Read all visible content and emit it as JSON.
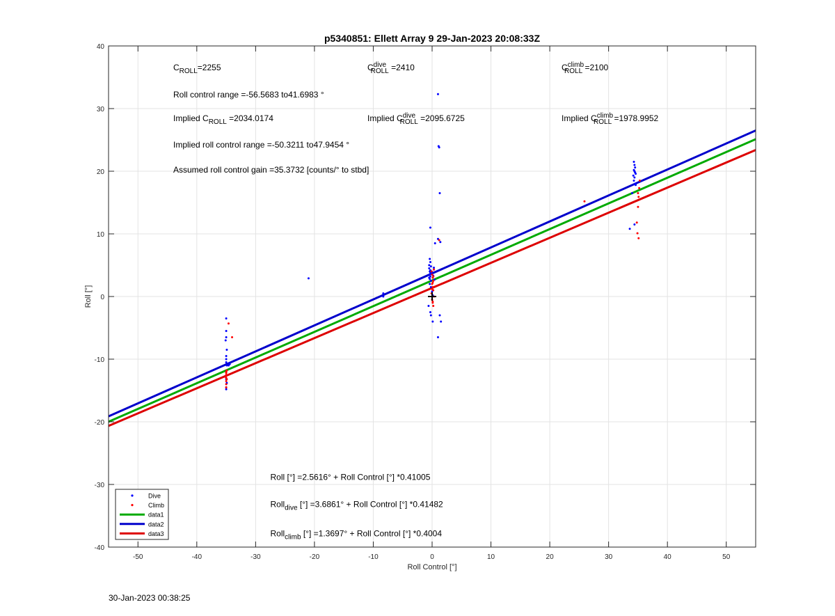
{
  "chart_data": {
    "type": "scatter",
    "title": "p5340851: Ellett Array 9 29-Jan-2023 20:08:33Z",
    "xlabel": "Roll Control [°]",
    "ylabel": "Roll [°]",
    "xlim": [
      -55,
      55
    ],
    "ylim": [
      -40,
      40
    ],
    "xticks": [
      -50,
      -40,
      -30,
      -20,
      -10,
      0,
      10,
      20,
      30,
      40,
      50
    ],
    "yticks": [
      -40,
      -30,
      -20,
      -10,
      0,
      10,
      20,
      30,
      40
    ],
    "grid": true,
    "legend_position": "bottom-left",
    "series": [
      {
        "name": "Dive",
        "kind": "points",
        "color": "#0000ff",
        "x": [
          -35.0,
          -35.0,
          -35.1,
          -34.9,
          -35.0,
          -35.0,
          -35.0,
          -34.9,
          -35.0,
          -35.1,
          -35.0,
          -34.9,
          -35.0,
          -35.0,
          -35.0,
          -34.6,
          -34.4,
          -21.0,
          -8.3,
          -8.3,
          -0.5,
          -0.4,
          -0.3,
          -0.4,
          -0.5,
          -0.3,
          -0.4,
          -0.2,
          -0.5,
          -0.3,
          -0.4,
          -0.2,
          -0.3,
          -0.1,
          -0.4,
          -0.2,
          0.0,
          0.1,
          -0.6,
          -0.3,
          -0.2,
          0.1,
          -0.3,
          0.5,
          0.3,
          0.0,
          0.2,
          0.4,
          1.0,
          1.1,
          1.2,
          1.3,
          1.0,
          1.4,
          1.5,
          1.0,
          1.3,
          34.3,
          34.4,
          34.5,
          34.3,
          34.4,
          34.5,
          34.6,
          34.2,
          34.4,
          34.3,
          34.5,
          34.6,
          34.0,
          33.6,
          34.4
        ],
        "y": [
          -3.5,
          -5.5,
          -7.0,
          -8.5,
          -9.5,
          -10.0,
          -10.5,
          -11.0,
          -12.0,
          -12.8,
          -13.2,
          -13.8,
          -14.5,
          -14.8,
          -6.5,
          -11.0,
          -10.8,
          2.9,
          0.5,
          0.0,
          4.5,
          4.0,
          3.8,
          3.5,
          3.0,
          3.2,
          2.8,
          2.5,
          5.0,
          5.5,
          6.0,
          4.8,
          4.2,
          3.6,
          2.0,
          1.5,
          0.8,
          0.2,
          -1.5,
          -2.5,
          -3.0,
          -4.0,
          11.0,
          8.5,
          4.6,
          3.9,
          3.3,
          2.7,
          32.3,
          24.0,
          23.8,
          16.5,
          9.2,
          8.7,
          -4.0,
          -6.5,
          -3.0,
          21.5,
          21.0,
          20.6,
          20.2,
          20.0,
          19.8,
          19.6,
          19.3,
          19.0,
          18.5,
          18.0,
          17.8,
          16.5,
          10.8,
          11.5
        ]
      },
      {
        "name": "Climb",
        "kind": "points",
        "color": "#ff0000",
        "x": [
          -35.0,
          -35.0,
          -35.0,
          -35.0,
          -35.0,
          -35.0,
          -34.9,
          -35.1,
          -34.9,
          -35.0,
          -34.6,
          -34.0,
          -0.1,
          0.0,
          0.1,
          0.2,
          0.0,
          0.1,
          0.2,
          -0.1,
          0.3,
          0.0,
          0.1,
          0.2,
          0.0,
          0.1,
          0.2,
          0.3,
          0.1,
          1.2,
          25.9,
          34.8,
          35.0,
          35.1,
          35.0,
          35.2,
          34.9,
          35.1,
          35.3
        ],
        "y": [
          -12.0,
          -12.5,
          -13.0,
          -13.5,
          -14.0,
          -14.5,
          -13.2,
          -12.8,
          -11.8,
          -12.2,
          -4.3,
          -6.5,
          4.0,
          3.5,
          3.0,
          2.5,
          2.0,
          1.5,
          1.0,
          0.5,
          0.0,
          -0.5,
          -1.0,
          -1.5,
          1.2,
          2.2,
          3.2,
          4.3,
          -0.8,
          9.0,
          15.2,
          11.8,
          14.3,
          15.9,
          16.5,
          17.3,
          10.1,
          9.3,
          18.5
        ]
      },
      {
        "name": "data1",
        "kind": "line",
        "color": "#00aa00",
        "intercept": 2.5616,
        "slope": 0.41005
      },
      {
        "name": "data2",
        "kind": "line",
        "color": "#0000cc",
        "intercept": 3.6861,
        "slope": 0.41482
      },
      {
        "name": "data3",
        "kind": "line",
        "color": "#dd0000",
        "intercept": 1.3697,
        "slope": 0.4004
      }
    ],
    "marker_plus": {
      "x": 0,
      "y": 0
    },
    "annotations": [
      {
        "id": "c-roll",
        "x": -44,
        "y": 36.1,
        "parts": [
          {
            "t": "C"
          },
          {
            "t": "ROLL",
            "pos": "sub"
          },
          {
            "t": "=2255"
          }
        ]
      },
      {
        "id": "c-roll-dive",
        "x": -11,
        "y": 36.1,
        "parts": [
          {
            "t": "C"
          },
          {
            "t": "dive",
            "pos": "sup"
          },
          {
            "t": "ROLL",
            "pos": "sub"
          },
          {
            "t": " =2410"
          }
        ]
      },
      {
        "id": "c-roll-climb",
        "x": 22,
        "y": 36.1,
        "parts": [
          {
            "t": "C"
          },
          {
            "t": "climb",
            "pos": "sup"
          },
          {
            "t": "ROLL",
            "pos": "sub"
          },
          {
            "t": " =2100"
          }
        ]
      },
      {
        "id": "roll-control-range",
        "x": -44,
        "y": 31.8,
        "parts": [
          {
            "t": "Roll control range =-56.5683 to41.6983 °"
          }
        ]
      },
      {
        "id": "implied-c-roll",
        "x": -44,
        "y": 28.0,
        "parts": [
          {
            "t": "Implied C"
          },
          {
            "t": "ROLL",
            "pos": "sub"
          },
          {
            "t": " =2034.0174"
          }
        ]
      },
      {
        "id": "implied-c-roll-dive",
        "x": -11,
        "y": 28.0,
        "parts": [
          {
            "t": "Implied C"
          },
          {
            "t": "dive",
            "pos": "sup"
          },
          {
            "t": "ROLL",
            "pos": "sub"
          },
          {
            "t": " =2095.6725"
          }
        ]
      },
      {
        "id": "implied-c-roll-climb",
        "x": 22,
        "y": 28.0,
        "parts": [
          {
            "t": "Implied C"
          },
          {
            "t": "climb",
            "pos": "sup"
          },
          {
            "t": "ROLL",
            "pos": "sub"
          },
          {
            "t": " =1978.9952"
          }
        ]
      },
      {
        "id": "implied-roll-control-range",
        "x": -44,
        "y": 23.8,
        "parts": [
          {
            "t": "Implied roll control range =-50.3211 to47.9454 °"
          }
        ]
      },
      {
        "id": "assumed-gain",
        "x": -44,
        "y": 19.8,
        "parts": [
          {
            "t": "Assumed roll control gain =35.3732 [counts/° to stbd]"
          }
        ]
      },
      {
        "id": "fit-all",
        "x": -27.5,
        "y": -29.3,
        "parts": [
          {
            "t": "Roll [°] =2.5616° + Roll Control [°] *0.41005"
          }
        ]
      },
      {
        "id": "fit-dive",
        "x": -27.5,
        "y": -33.6,
        "parts": [
          {
            "t": "Roll"
          },
          {
            "t": "dive",
            "pos": "sub"
          },
          {
            "t": " [°] =3.6861° + Roll Control [°] *0.41482"
          }
        ]
      },
      {
        "id": "fit-climb",
        "x": -27.5,
        "y": -38.3,
        "parts": [
          {
            "t": "Roll"
          },
          {
            "t": "climb",
            "pos": "sub"
          },
          {
            "t": " [°] =1.3697° + Roll Control [°] *0.4004"
          }
        ]
      }
    ]
  },
  "footer": {
    "timestamp": "30-Jan-2023 00:38:25"
  }
}
